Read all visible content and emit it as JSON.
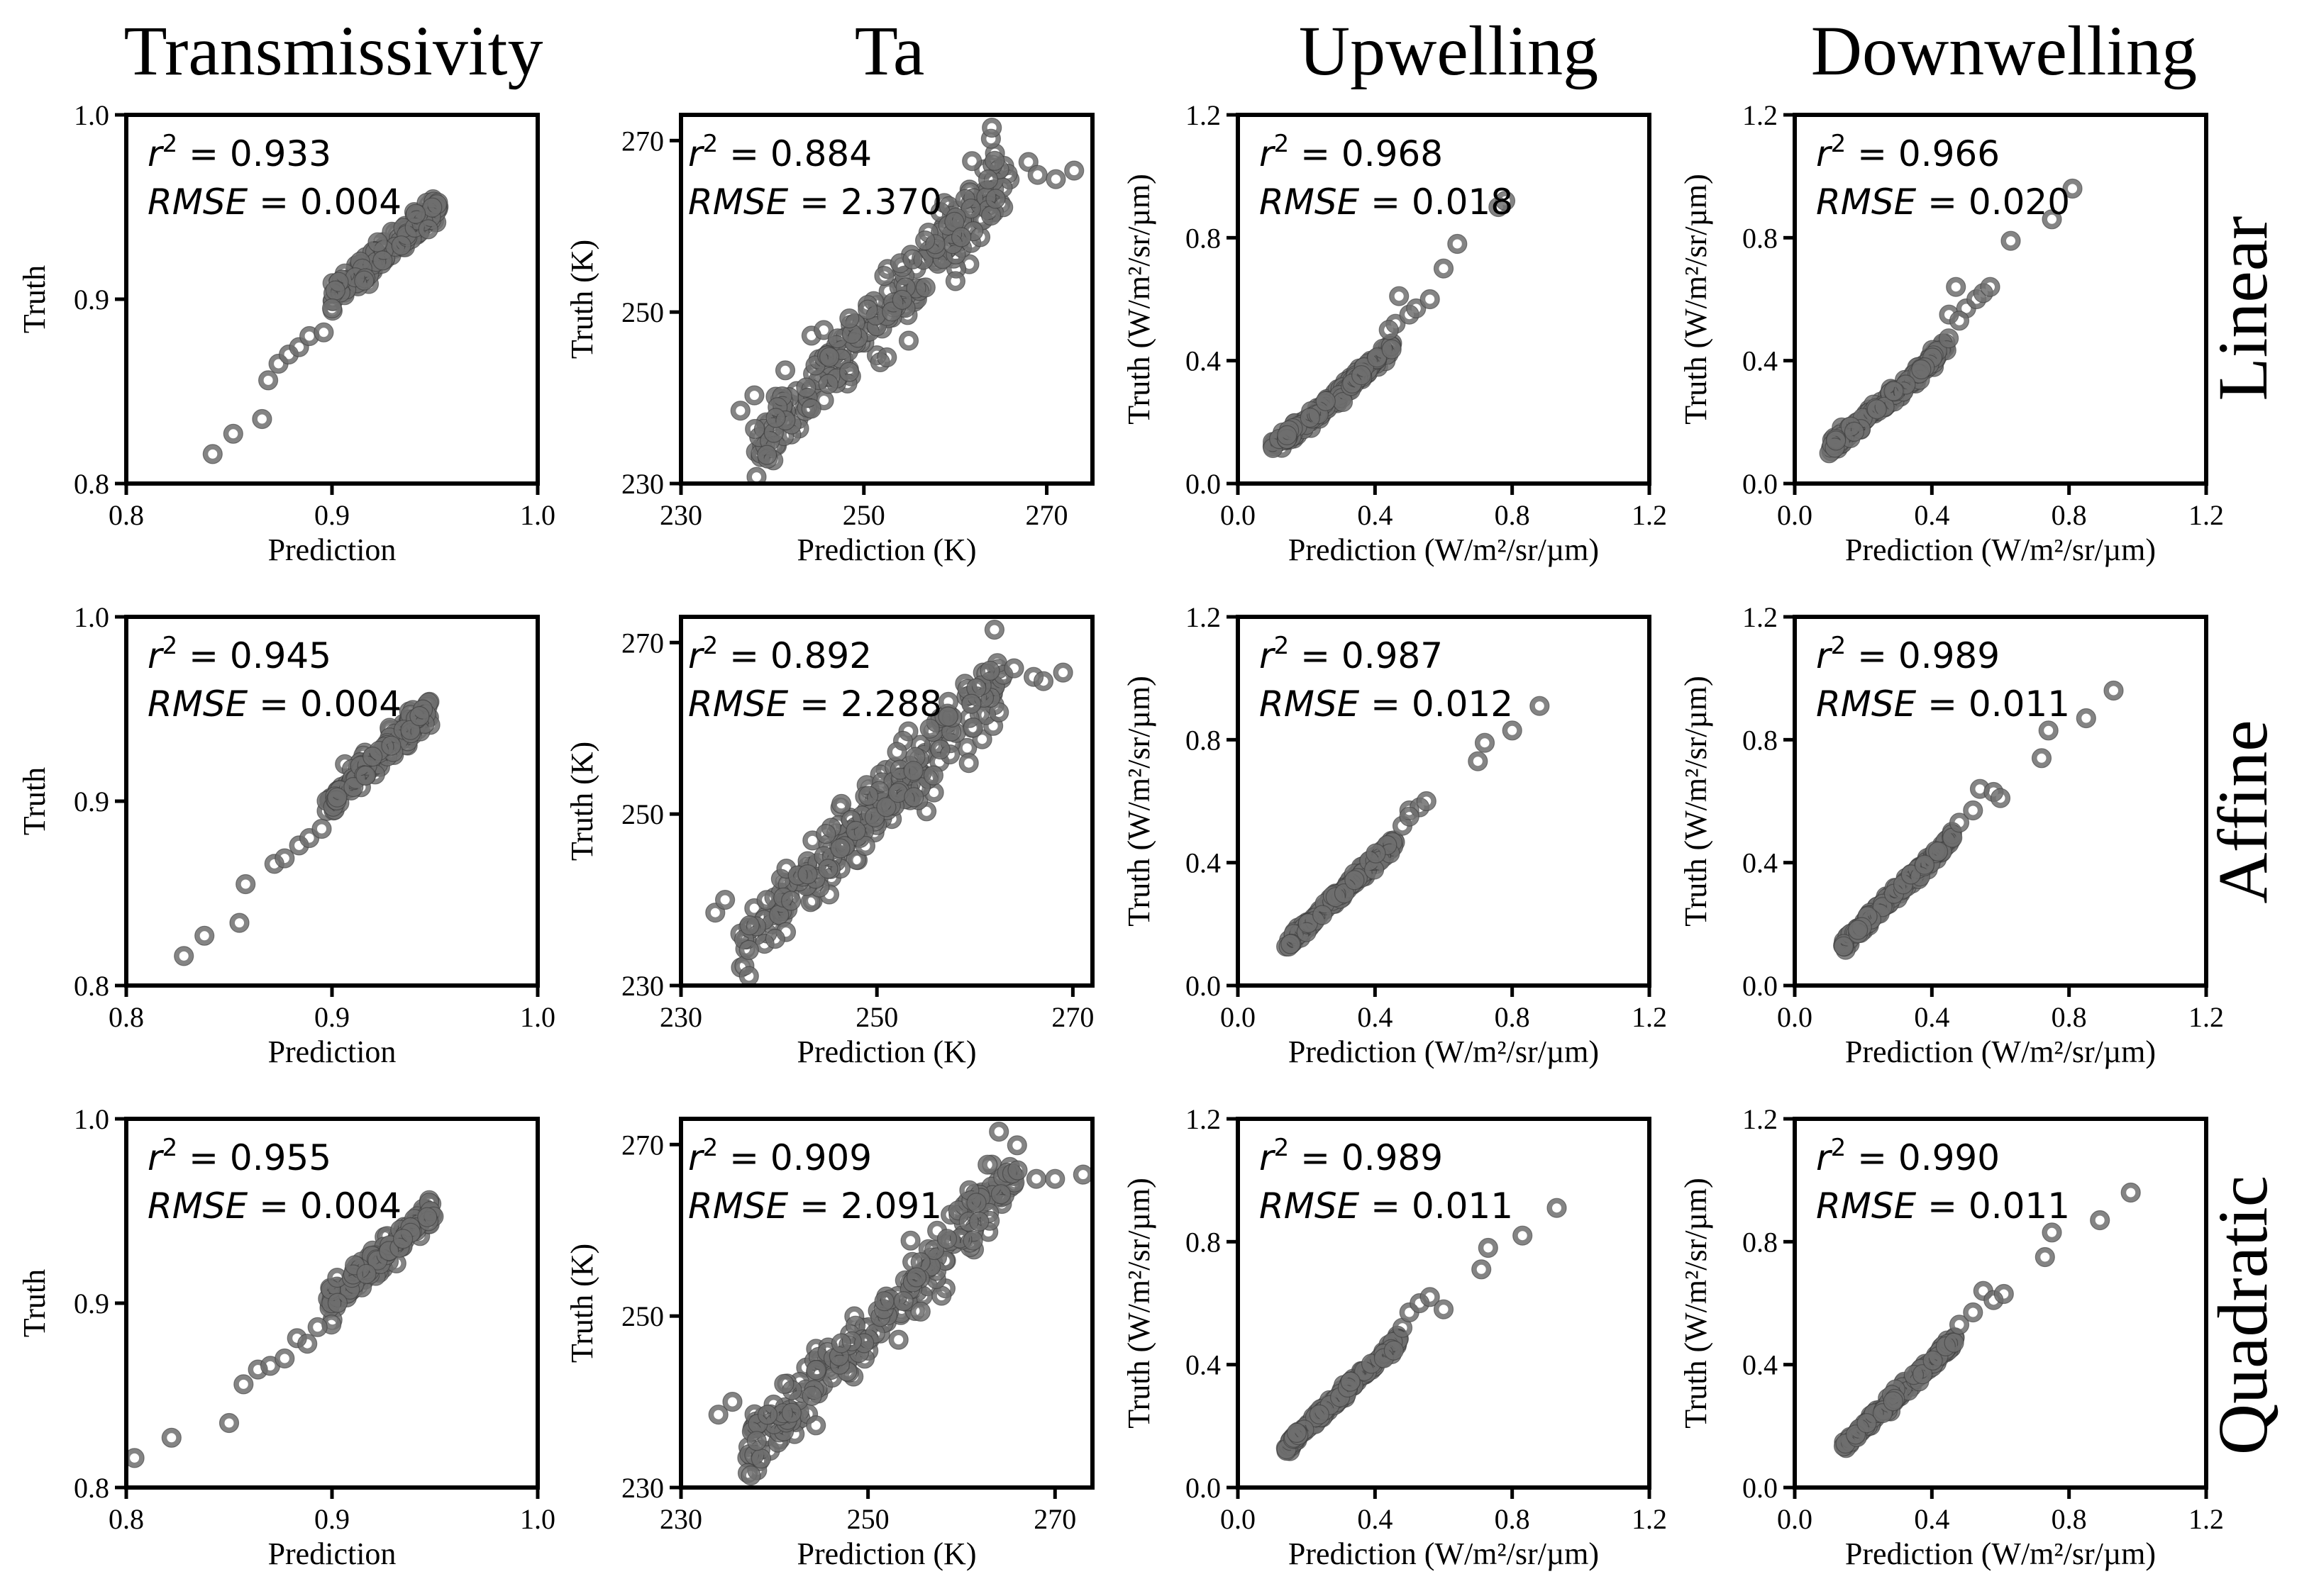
{
  "column_titles": [
    "Transmissivity",
    "Ta",
    "Upwelling",
    "Downwelling"
  ],
  "row_titles": [
    "Linear",
    "Affine",
    "Quadratic"
  ],
  "marker_color": "#6e6e6e",
  "marker_edge_color": "#3a3a3a",
  "chart_data": [
    {
      "type": "scatter",
      "row": "Linear",
      "column": "Transmissivity",
      "xlabel": "Prediction",
      "ylabel": "Truth",
      "xlim": [
        0.8,
        1.0
      ],
      "ylim": [
        0.8,
        1.0
      ],
      "xticks": [
        "0.8",
        "0.9",
        "1.0"
      ],
      "yticks": [
        "0.8",
        "0.9",
        "1.0"
      ],
      "r2": "0.933",
      "rmse": "0.004",
      "sparse_points": [
        [
          0.842,
          0.816
        ],
        [
          0.852,
          0.827
        ],
        [
          0.866,
          0.835
        ],
        [
          0.869,
          0.856
        ],
        [
          0.874,
          0.865
        ],
        [
          0.879,
          0.87
        ],
        [
          0.884,
          0.874
        ],
        [
          0.889,
          0.88
        ],
        [
          0.896,
          0.882
        ],
        [
          0.9,
          0.895
        ]
      ],
      "dense_x": [
        0.9,
        0.952
      ],
      "dense_y": [
        0.9,
        0.952
      ],
      "dense_n": 140,
      "dense_noise": 0.004
    },
    {
      "type": "scatter",
      "row": "Linear",
      "column": "Ta",
      "xlabel": "Prediction (K)",
      "ylabel": "Truth (K)",
      "xlim": [
        230,
        275
      ],
      "ylim": [
        230,
        273
      ],
      "xticks": [
        "230",
        "250",
        "270"
      ],
      "yticks": [
        "230",
        "250",
        "270"
      ],
      "r2": "0.884",
      "rmse": "2.370",
      "sparse_points": [
        [
          264,
          271.5
        ],
        [
          268,
          267.5
        ],
        [
          269,
          266
        ],
        [
          271,
          265.5
        ],
        [
          273,
          266.5
        ],
        [
          236.5,
          238.5
        ]
      ],
      "dense_x": [
        238,
        266
      ],
      "dense_y": [
        234,
        266
      ],
      "dense_n": 230,
      "dense_noise": 2.3
    },
    {
      "type": "scatter",
      "row": "Linear",
      "column": "Upwelling",
      "xlabel": "Prediction (W/m²/sr/µm)",
      "ylabel": "Truth (W/m²/sr/µm)",
      "xlim": [
        0.0,
        1.2
      ],
      "ylim": [
        0.0,
        1.2
      ],
      "xticks": [
        "0.0",
        "0.4",
        "0.8",
        "1.2"
      ],
      "yticks": [
        "0.0",
        "0.4",
        "0.8",
        "1.2"
      ],
      "r2": "0.968",
      "rmse": "0.018",
      "sparse_points": [
        [
          0.46,
          0.52
        ],
        [
          0.47,
          0.61
        ],
        [
          0.5,
          0.55
        ],
        [
          0.52,
          0.57
        ],
        [
          0.56,
          0.6
        ],
        [
          0.6,
          0.7
        ],
        [
          0.64,
          0.78
        ],
        [
          0.76,
          0.9
        ],
        [
          0.78,
          0.92
        ],
        [
          0.44,
          0.5
        ]
      ],
      "dense_x": [
        0.1,
        0.45
      ],
      "dense_y": [
        0.12,
        0.45
      ],
      "dense_n": 170,
      "dense_noise": 0.012,
      "curve": "quad"
    },
    {
      "type": "scatter",
      "row": "Linear",
      "column": "Downwelling",
      "xlabel": "Prediction (W/m²/sr/µm)",
      "ylabel": "Truth (W/m²/sr/µm)",
      "xlim": [
        0.0,
        1.2
      ],
      "ylim": [
        0.0,
        1.2
      ],
      "xticks": [
        "0.0",
        "0.4",
        "0.8",
        "1.2"
      ],
      "yticks": [
        "0.0",
        "0.4",
        "0.8",
        "1.2"
      ],
      "r2": "0.966",
      "rmse": "0.020",
      "sparse_points": [
        [
          0.45,
          0.55
        ],
        [
          0.47,
          0.64
        ],
        [
          0.5,
          0.57
        ],
        [
          0.53,
          0.6
        ],
        [
          0.55,
          0.62
        ],
        [
          0.57,
          0.64
        ],
        [
          0.63,
          0.79
        ],
        [
          0.75,
          0.86
        ],
        [
          0.81,
          0.96
        ],
        [
          0.48,
          0.53
        ]
      ],
      "dense_x": [
        0.1,
        0.45
      ],
      "dense_y": [
        0.12,
        0.46
      ],
      "dense_n": 170,
      "dense_noise": 0.012,
      "curve": "quad"
    },
    {
      "type": "scatter",
      "row": "Affine",
      "column": "Transmissivity",
      "xlabel": "Prediction",
      "ylabel": "Truth",
      "xlim": [
        0.8,
        1.0
      ],
      "ylim": [
        0.8,
        1.0
      ],
      "xticks": [
        "0.8",
        "0.9",
        "1.0"
      ],
      "yticks": [
        "0.8",
        "0.9",
        "1.0"
      ],
      "r2": "0.945",
      "rmse": "0.004",
      "sparse_points": [
        [
          0.828,
          0.816
        ],
        [
          0.838,
          0.827
        ],
        [
          0.855,
          0.834
        ],
        [
          0.858,
          0.855
        ],
        [
          0.872,
          0.866
        ],
        [
          0.877,
          0.869
        ],
        [
          0.884,
          0.876
        ],
        [
          0.889,
          0.88
        ],
        [
          0.895,
          0.885
        ]
      ],
      "dense_x": [
        0.897,
        0.948
      ],
      "dense_y": [
        0.898,
        0.95
      ],
      "dense_n": 140,
      "dense_noise": 0.004
    },
    {
      "type": "scatter",
      "row": "Affine",
      "column": "Ta",
      "xlabel": "Prediction (K)",
      "ylabel": "Truth (K)",
      "xlim": [
        230,
        272
      ],
      "ylim": [
        230,
        273
      ],
      "xticks": [
        "230",
        "250",
        "270"
      ],
      "yticks": [
        "230",
        "250",
        "270"
      ],
      "r2": "0.892",
      "rmse": "2.288",
      "sparse_points": [
        [
          262,
          271.5
        ],
        [
          264,
          267
        ],
        [
          266,
          266
        ],
        [
          267,
          265.5
        ],
        [
          269,
          266.5
        ],
        [
          233.5,
          238.5
        ],
        [
          234.5,
          240
        ]
      ],
      "dense_x": [
        236,
        263
      ],
      "dense_y": [
        234,
        266
      ],
      "dense_n": 230,
      "dense_noise": 2.2
    },
    {
      "type": "scatter",
      "row": "Affine",
      "column": "Upwelling",
      "xlabel": "Prediction (W/m²/sr/µm)",
      "ylabel": "Truth (W/m²/sr/µm)",
      "xlim": [
        0.0,
        1.2
      ],
      "ylim": [
        0.0,
        1.2
      ],
      "xticks": [
        "0.0",
        "0.4",
        "0.8",
        "1.2"
      ],
      "yticks": [
        "0.0",
        "0.4",
        "0.8",
        "1.2"
      ],
      "r2": "0.987",
      "rmse": "0.012",
      "sparse_points": [
        [
          0.48,
          0.52
        ],
        [
          0.5,
          0.57
        ],
        [
          0.53,
          0.58
        ],
        [
          0.55,
          0.6
        ],
        [
          0.7,
          0.73
        ],
        [
          0.72,
          0.79
        ],
        [
          0.8,
          0.83
        ],
        [
          0.88,
          0.91
        ],
        [
          0.5,
          0.55
        ]
      ],
      "dense_x": [
        0.14,
        0.46
      ],
      "dense_y": [
        0.13,
        0.47
      ],
      "dense_n": 160,
      "dense_noise": 0.01
    },
    {
      "type": "scatter",
      "row": "Affine",
      "column": "Downwelling",
      "xlabel": "Prediction (W/m²/sr/µm)",
      "ylabel": "Truth (W/m²/sr/µm)",
      "xlim": [
        0.0,
        1.2
      ],
      "ylim": [
        0.0,
        1.2
      ],
      "xticks": [
        "0.0",
        "0.4",
        "0.8",
        "1.2"
      ],
      "yticks": [
        "0.0",
        "0.4",
        "0.8",
        "1.2"
      ],
      "r2": "0.989",
      "rmse": "0.011",
      "sparse_points": [
        [
          0.48,
          0.53
        ],
        [
          0.52,
          0.57
        ],
        [
          0.54,
          0.64
        ],
        [
          0.58,
          0.63
        ],
        [
          0.6,
          0.61
        ],
        [
          0.72,
          0.74
        ],
        [
          0.74,
          0.83
        ],
        [
          0.85,
          0.87
        ],
        [
          0.93,
          0.96
        ]
      ],
      "dense_x": [
        0.14,
        0.46
      ],
      "dense_y": [
        0.13,
        0.48
      ],
      "dense_n": 160,
      "dense_noise": 0.01
    },
    {
      "type": "scatter",
      "row": "Quadratic",
      "column": "Transmissivity",
      "xlabel": "Prediction",
      "ylabel": "Truth",
      "xlim": [
        0.8,
        1.0
      ],
      "ylim": [
        0.8,
        1.0
      ],
      "xticks": [
        "0.8",
        "0.9",
        "1.0"
      ],
      "yticks": [
        "0.8",
        "0.9",
        "1.0"
      ],
      "r2": "0.955",
      "rmse": "0.004",
      "sparse_points": [
        [
          0.804,
          0.816
        ],
        [
          0.822,
          0.827
        ],
        [
          0.85,
          0.835
        ],
        [
          0.857,
          0.856
        ],
        [
          0.864,
          0.864
        ],
        [
          0.87,
          0.866
        ],
        [
          0.877,
          0.87
        ],
        [
          0.883,
          0.881
        ],
        [
          0.888,
          0.878
        ],
        [
          0.893,
          0.887
        ]
      ],
      "dense_x": [
        0.898,
        0.95
      ],
      "dense_y": [
        0.9,
        0.952
      ],
      "dense_n": 140,
      "dense_noise": 0.004
    },
    {
      "type": "scatter",
      "row": "Quadratic",
      "column": "Ta",
      "xlabel": "Prediction (K)",
      "ylabel": "Truth (K)",
      "xlim": [
        230,
        274
      ],
      "ylim": [
        230,
        273
      ],
      "xticks": [
        "230",
        "250",
        "270"
      ],
      "yticks": [
        "230",
        "250",
        "270"
      ],
      "r2": "0.909",
      "rmse": "2.091",
      "sparse_points": [
        [
          264,
          271.5
        ],
        [
          266,
          267
        ],
        [
          268,
          266
        ],
        [
          270,
          266
        ],
        [
          273,
          266.5
        ],
        [
          234,
          238.5
        ],
        [
          235.5,
          240
        ]
      ],
      "dense_x": [
        237,
        266
      ],
      "dense_y": [
        234,
        266
      ],
      "dense_n": 220,
      "dense_noise": 2.0
    },
    {
      "type": "scatter",
      "row": "Quadratic",
      "column": "Upwelling",
      "xlabel": "Prediction (W/m²/sr/µm)",
      "ylabel": "Truth (W/m²/sr/µm)",
      "xlim": [
        0.0,
        1.2
      ],
      "ylim": [
        0.0,
        1.2
      ],
      "xticks": [
        "0.0",
        "0.4",
        "0.8",
        "1.2"
      ],
      "yticks": [
        "0.0",
        "0.4",
        "0.8",
        "1.2"
      ],
      "r2": "0.989",
      "rmse": "0.011",
      "sparse_points": [
        [
          0.48,
          0.52
        ],
        [
          0.5,
          0.57
        ],
        [
          0.53,
          0.6
        ],
        [
          0.56,
          0.62
        ],
        [
          0.6,
          0.58
        ],
        [
          0.71,
          0.71
        ],
        [
          0.73,
          0.78
        ],
        [
          0.83,
          0.82
        ],
        [
          0.93,
          0.91
        ]
      ],
      "dense_x": [
        0.14,
        0.47
      ],
      "dense_y": [
        0.13,
        0.48
      ],
      "dense_n": 160,
      "dense_noise": 0.01
    },
    {
      "type": "scatter",
      "row": "Quadratic",
      "column": "Downwelling",
      "xlabel": "Prediction (W/m²/sr/µm)",
      "ylabel": "Truth (W/m²/sr/µm)",
      "xlim": [
        0.0,
        1.2
      ],
      "ylim": [
        0.0,
        1.2
      ],
      "xticks": [
        "0.0",
        "0.4",
        "0.8",
        "1.2"
      ],
      "yticks": [
        "0.0",
        "0.4",
        "0.8",
        "1.2"
      ],
      "r2": "0.990",
      "rmse": "0.011",
      "sparse_points": [
        [
          0.48,
          0.53
        ],
        [
          0.52,
          0.57
        ],
        [
          0.55,
          0.64
        ],
        [
          0.58,
          0.61
        ],
        [
          0.61,
          0.63
        ],
        [
          0.73,
          0.75
        ],
        [
          0.75,
          0.83
        ],
        [
          0.89,
          0.87
        ],
        [
          0.98,
          0.96
        ]
      ],
      "dense_x": [
        0.14,
        0.47
      ],
      "dense_y": [
        0.13,
        0.48
      ],
      "dense_n": 160,
      "dense_noise": 0.01
    }
  ]
}
